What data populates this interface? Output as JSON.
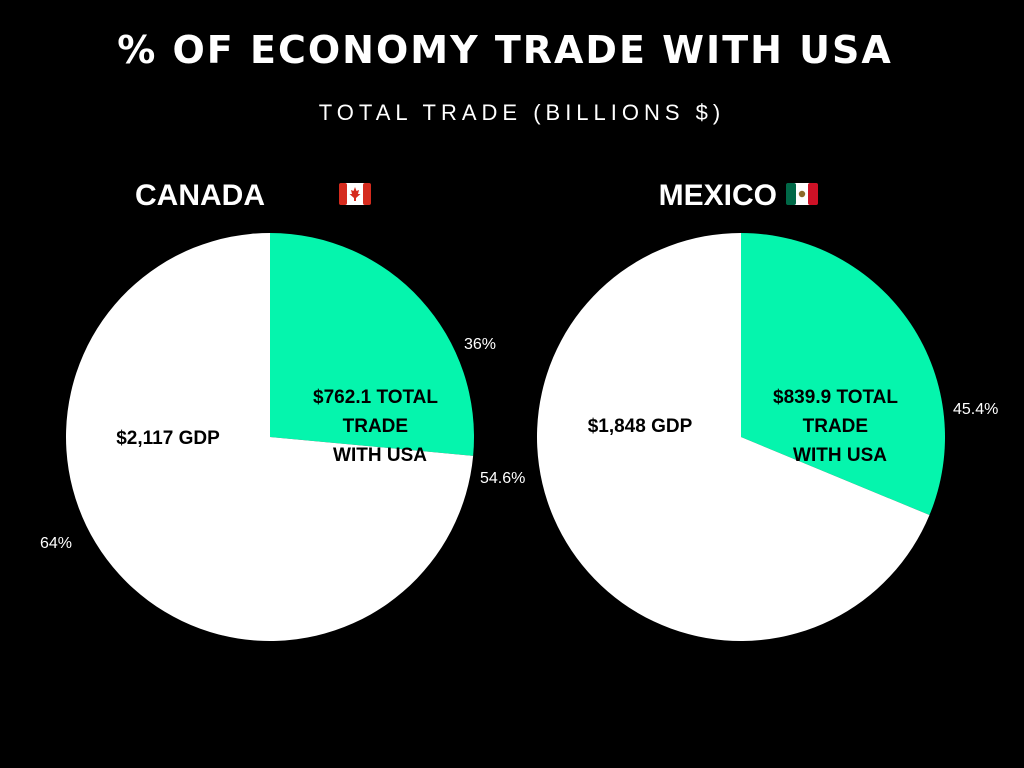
{
  "title": "% OF ECONOMY TRADE WITH USA",
  "subtitle": "TOTAL TRADE (BILLIONS $)",
  "colors": {
    "background": "#000000",
    "trade": "#05f5ad",
    "gdp": "#ffffff",
    "text": "#ffffff"
  },
  "chart_data": [
    {
      "type": "pie",
      "title": "CANADA",
      "flag_icon": "canada-flag-icon",
      "slices": [
        {
          "name": "trade",
          "lines": [
            "$762.1 TOTAL",
            "TRADE",
            "WITH USA"
          ],
          "value": 762.1,
          "percent_label": "36%",
          "color": "#05f5ad"
        },
        {
          "name": "gdp",
          "lines": [
            "$2,117 GDP"
          ],
          "value": 2117,
          "percent_label": "64%",
          "color": "#ffffff"
        }
      ]
    },
    {
      "type": "pie",
      "title": "MEXICO",
      "flag_icon": "mexico-flag-icon",
      "slices": [
        {
          "name": "trade",
          "lines": [
            "$839.9 TOTAL",
            "TRADE",
            "WITH USA"
          ],
          "value": 839.9,
          "percent_label": "45.4%",
          "color": "#05f5ad"
        },
        {
          "name": "gdp",
          "lines": [
            "$1,848 GDP"
          ],
          "value": 1848,
          "percent_label": "54.6%",
          "color": "#ffffff"
        }
      ]
    }
  ]
}
